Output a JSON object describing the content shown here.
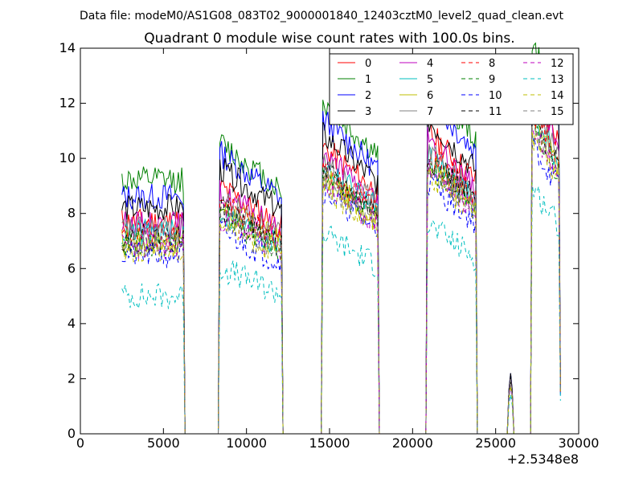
{
  "suptitle": "Data file: modeM0/AS1G08_083T02_9000001840_12403cztM0_level2_quad_clean.evt",
  "chart_data": {
    "type": "line",
    "title": "Quadrant 0 module wise count rates with 100.0s bins.",
    "xlabel": "",
    "ylabel": "",
    "x_offset_label": "+2.5348e8",
    "xlim": [
      0,
      30000
    ],
    "ylim": [
      0,
      14
    ],
    "xticks": [
      0,
      5000,
      10000,
      15000,
      20000,
      25000,
      30000
    ],
    "xtick_labels": [
      "0",
      "5000",
      "10000",
      "15000",
      "20000",
      "25000",
      "30000"
    ],
    "yticks": [
      0,
      2,
      4,
      6,
      8,
      10,
      12,
      14
    ],
    "ytick_labels": [
      "0",
      "2",
      "4",
      "6",
      "8",
      "10",
      "12",
      "14"
    ],
    "grid": false,
    "legend_position": "top-right",
    "legend_columns": 4,
    "bin_width_s": 100,
    "segments": [
      {
        "start": 2500,
        "end": 6200
      },
      {
        "start": 8400,
        "end": 12100
      },
      {
        "start": 14600,
        "end": 17900
      },
      {
        "start": 20900,
        "end": 23800
      },
      {
        "start": 25800,
        "end": 26000
      },
      {
        "start": 27200,
        "end": 28900
      }
    ],
    "series": [
      {
        "name": "0",
        "color": "#ff0000",
        "dash": "solid",
        "levels": [
          7.7,
          8.0,
          9.3,
          9.8,
          1.8,
          11.2
        ],
        "seed": 11
      },
      {
        "name": "1",
        "color": "#008000",
        "dash": "solid",
        "levels": [
          9.2,
          9.4,
          10.7,
          11.4,
          1.9,
          12.6
        ],
        "seed": 12
      },
      {
        "name": "2",
        "color": "#0000ff",
        "dash": "solid",
        "levels": [
          8.6,
          9.1,
          10.2,
          10.9,
          2.0,
          12.0
        ],
        "seed": 13
      },
      {
        "name": "3",
        "color": "#000000",
        "dash": "solid",
        "levels": [
          8.2,
          8.6,
          9.7,
          10.2,
          2.0,
          11.6
        ],
        "seed": 14
      },
      {
        "name": "4",
        "color": "#bf00bf",
        "dash": "solid",
        "levels": [
          7.6,
          7.8,
          9.0,
          9.5,
          1.8,
          10.9
        ],
        "seed": 15
      },
      {
        "name": "5",
        "color": "#00bfbf",
        "dash": "solid",
        "levels": [
          7.3,
          7.2,
          8.7,
          9.0,
          1.7,
          10.4
        ],
        "seed": 16
      },
      {
        "name": "6",
        "color": "#bfbf00",
        "dash": "solid",
        "levels": [
          7.0,
          7.4,
          8.3,
          8.8,
          1.7,
          10.2
        ],
        "seed": 17
      },
      {
        "name": "7",
        "color": "#808080",
        "dash": "solid",
        "levels": [
          7.4,
          7.6,
          8.8,
          9.2,
          1.8,
          10.6
        ],
        "seed": 18
      },
      {
        "name": "8",
        "color": "#ff0000",
        "dash": "dashed",
        "levels": [
          7.2,
          7.5,
          8.6,
          9.1,
          1.7,
          10.5
        ],
        "seed": 19
      },
      {
        "name": "9",
        "color": "#008000",
        "dash": "dashed",
        "levels": [
          6.9,
          7.1,
          8.3,
          8.7,
          1.7,
          10.0
        ],
        "seed": 20
      },
      {
        "name": "10",
        "color": "#0000ff",
        "dash": "dashed",
        "levels": [
          6.5,
          6.6,
          7.9,
          8.2,
          1.6,
          9.4
        ],
        "seed": 21
      },
      {
        "name": "11",
        "color": "#000000",
        "dash": "dashed",
        "levels": [
          7.1,
          7.3,
          8.5,
          9.0,
          1.7,
          10.3
        ],
        "seed": 22
      },
      {
        "name": "12",
        "color": "#bf00bf",
        "dash": "dashed",
        "levels": [
          6.8,
          7.0,
          8.1,
          8.6,
          1.6,
          9.9
        ],
        "seed": 23
      },
      {
        "name": "13",
        "color": "#00bfbf",
        "dash": "dashed",
        "levels": [
          5.0,
          5.4,
          6.5,
          6.8,
          1.3,
          8.0
        ],
        "seed": 24
      },
      {
        "name": "14",
        "color": "#bfbf00",
        "dash": "dashed",
        "levels": [
          6.7,
          6.9,
          8.0,
          8.5,
          1.6,
          9.7
        ],
        "seed": 25
      },
      {
        "name": "15",
        "color": "#808080",
        "dash": "dashed",
        "levels": [
          6.9,
          7.1,
          8.2,
          8.8,
          1.7,
          10.1
        ],
        "seed": 26
      }
    ]
  }
}
